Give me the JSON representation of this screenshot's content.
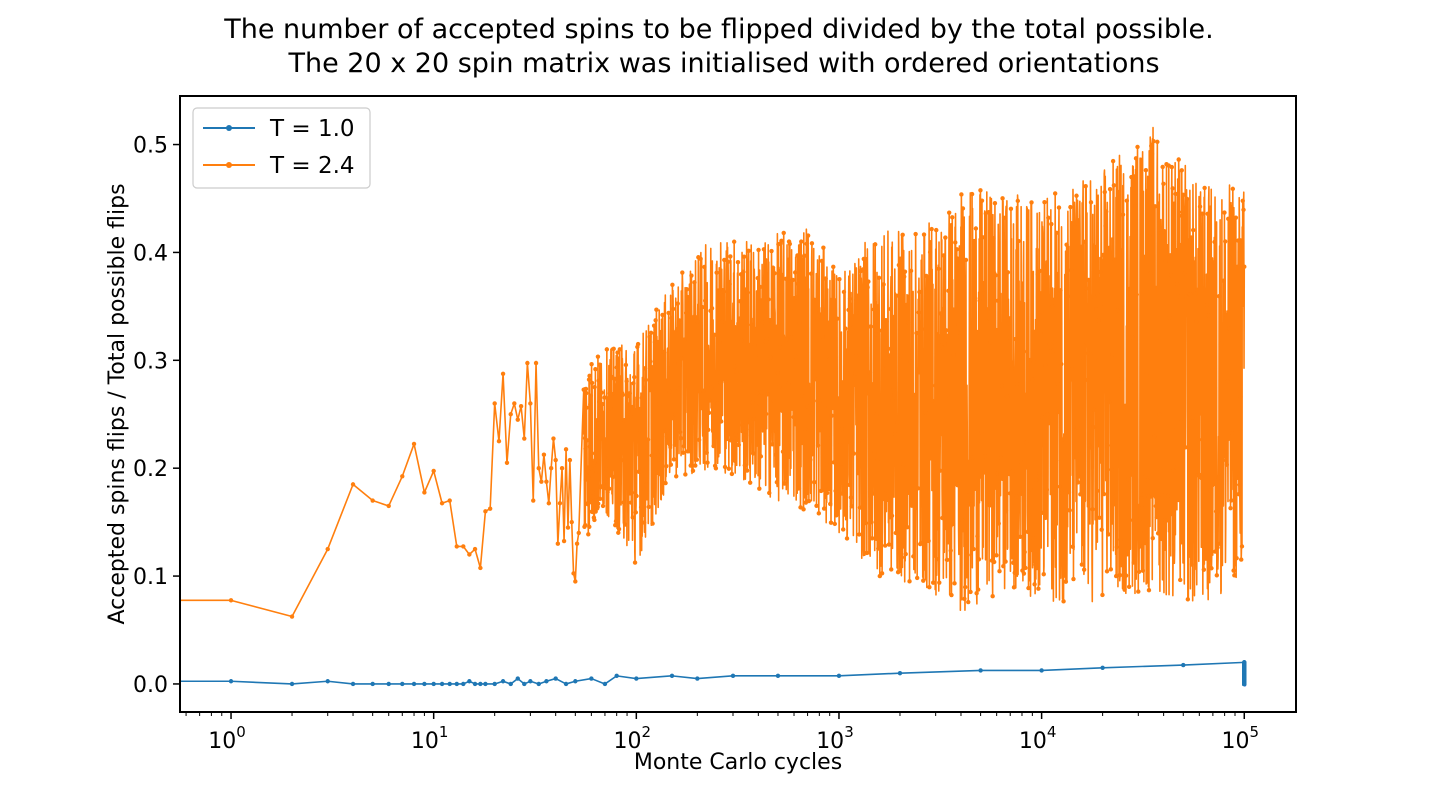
{
  "chart_data": {
    "type": "line",
    "title": "The number of accepted spins to be flipped divided by the total possible.",
    "subtitle": "The 20 x 20 spin matrix was initialised with ordered orientations",
    "xlabel": "Monte Carlo cycles",
    "ylabel": "Accepted spins flips / Total possible flips",
    "xscale": "log",
    "xlim": [
      0.56,
      180000
    ],
    "ylim": [
      -0.026,
      0.545
    ],
    "x_ticks": [
      {
        "base": "10",
        "exp": "0"
      },
      {
        "base": "10",
        "exp": "1"
      },
      {
        "base": "10",
        "exp": "2"
      },
      {
        "base": "10",
        "exp": "3"
      },
      {
        "base": "10",
        "exp": "4"
      },
      {
        "base": "10",
        "exp": "5"
      }
    ],
    "y_ticks": [
      "0.0",
      "0.1",
      "0.2",
      "0.3",
      "0.4",
      "0.5"
    ],
    "grid": false,
    "legend_position": "top-left",
    "series": [
      {
        "name": "T = 1.0",
        "color": "#1f77b4",
        "x": [
          0,
          1,
          2,
          3,
          4,
          5,
          6,
          7,
          8,
          9,
          10,
          11,
          12,
          13,
          14,
          15,
          16,
          17,
          18,
          20,
          22,
          24,
          26,
          28,
          30,
          33,
          36,
          40,
          45,
          50,
          60,
          70,
          80,
          100,
          150,
          200,
          300,
          500,
          1000,
          2000,
          5000,
          10000,
          20000,
          50000,
          100000
        ],
        "y": [
          0.0025,
          0.0025,
          0.0,
          0.0025,
          0.0,
          0.0,
          0.0,
          0.0,
          0.0,
          0.0,
          0.0,
          0.0,
          0.0,
          0.0,
          0.0,
          0.0025,
          0.0,
          0.0,
          0.0,
          0.0,
          0.0025,
          0.0,
          0.005,
          0.0,
          0.0025,
          0.0,
          0.0025,
          0.005,
          0.0,
          0.0025,
          0.005,
          0.0,
          0.0075,
          0.005,
          0.0075,
          0.005,
          0.0075,
          0.0075,
          0.0075,
          0.01,
          0.0125,
          0.0125,
          0.015,
          0.0175,
          0.02
        ],
        "envelope_high": [
          0.005,
          0.0075,
          0.01,
          0.0125,
          0.015,
          0.0175,
          0.02
        ],
        "envelope_x": [
          100,
          300,
          1000,
          3000,
          10000,
          30000,
          100000
        ]
      },
      {
        "name": "T = 2.4",
        "color": "#ff7f0e",
        "x": [
          0,
          1,
          2,
          3,
          4,
          5,
          6,
          7,
          8,
          9,
          10,
          11,
          12,
          13,
          14,
          15,
          16,
          17,
          18,
          19,
          20,
          21,
          22,
          23,
          24,
          25,
          26,
          27,
          28,
          29,
          30,
          31,
          32,
          33,
          34,
          35,
          36,
          37,
          38,
          39,
          40,
          41,
          42,
          43,
          44,
          45,
          46,
          47,
          48,
          49,
          50,
          51,
          52
        ],
        "y": [
          0.0775,
          0.0775,
          0.0625,
          0.125,
          0.185,
          0.17,
          0.165,
          0.1925,
          0.2225,
          0.1775,
          0.1975,
          0.1675,
          0.17,
          0.1275,
          0.1275,
          0.12,
          0.125,
          0.1075,
          0.16,
          0.1625,
          0.26,
          0.225,
          0.2875,
          0.205,
          0.25,
          0.26,
          0.245,
          0.2575,
          0.2275,
          0.2975,
          0.26,
          0.17,
          0.2975,
          0.2,
          0.1875,
          0.2125,
          0.1875,
          0.1675,
          0.2,
          0.2275,
          0.2075,
          0.13,
          0.1675,
          0.2,
          0.1325,
          0.2175,
          0.145,
          0.2075,
          0.15,
          0.1025,
          0.095,
          0.13,
          0.14
        ],
        "envelope_x": [
          55,
          70,
          100,
          150,
          250,
          400,
          700,
          1000,
          1500,
          2500,
          4000,
          7000,
          10000,
          20000,
          36000,
          60000,
          100000
        ],
        "envelope_low": [
          0.13,
          0.16,
          0.11,
          0.19,
          0.2,
          0.175,
          0.16,
          0.14,
          0.1,
          0.09,
          0.065,
          0.09,
          0.075,
          0.075,
          0.085,
          0.065,
          0.1
        ],
        "envelope_high": [
          0.3,
          0.31,
          0.32,
          0.37,
          0.42,
          0.41,
          0.43,
          0.38,
          0.42,
          0.42,
          0.46,
          0.455,
          0.45,
          0.48,
          0.52,
          0.465,
          0.465
        ]
      }
    ]
  }
}
